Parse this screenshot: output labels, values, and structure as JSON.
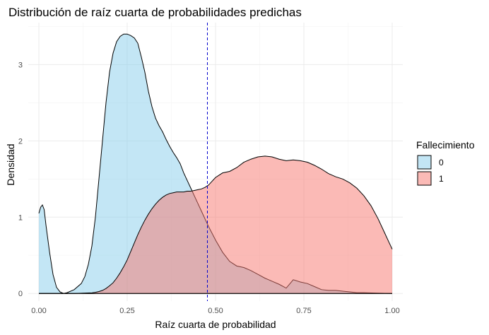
{
  "chart_data": {
    "type": "area",
    "title": "Distribución de raíz cuarta de probabilidades predichas",
    "xlabel": "Raíz cuarta de probabilidad",
    "ylabel": "Densidad",
    "xlim": [
      -0.03,
      1.03
    ],
    "ylim": [
      -0.1,
      3.55
    ],
    "x_ticks": [
      0.0,
      0.25,
      0.5,
      0.75,
      1.0
    ],
    "x_tick_labels": [
      "0.00",
      "0.25",
      "0.50",
      "0.75",
      "1.00"
    ],
    "y_ticks": [
      0,
      1,
      2,
      3
    ],
    "y_tick_labels": [
      "0",
      "1",
      "2",
      "3"
    ],
    "grid": true,
    "vline": {
      "x": 0.477,
      "color": "#0000cd",
      "style": "dashed"
    },
    "legend": {
      "title": "Fallecimiento",
      "position": "right"
    },
    "series": [
      {
        "name": "0",
        "fill": "#87ceeb",
        "opacity": 0.5,
        "points": [
          [
            0.0,
            1.05
          ],
          [
            0.005,
            1.13
          ],
          [
            0.01,
            1.16
          ],
          [
            0.015,
            1.1
          ],
          [
            0.02,
            0.9
          ],
          [
            0.03,
            0.55
          ],
          [
            0.04,
            0.25
          ],
          [
            0.05,
            0.08
          ],
          [
            0.06,
            0.02
          ],
          [
            0.07,
            0.0
          ],
          [
            0.08,
            0.01
          ],
          [
            0.1,
            0.05
          ],
          [
            0.12,
            0.13
          ],
          [
            0.13,
            0.22
          ],
          [
            0.14,
            0.38
          ],
          [
            0.15,
            0.62
          ],
          [
            0.16,
            1.0
          ],
          [
            0.17,
            1.5
          ],
          [
            0.18,
            2.0
          ],
          [
            0.19,
            2.5
          ],
          [
            0.2,
            2.9
          ],
          [
            0.21,
            3.15
          ],
          [
            0.22,
            3.3
          ],
          [
            0.23,
            3.37
          ],
          [
            0.24,
            3.4
          ],
          [
            0.25,
            3.4
          ],
          [
            0.26,
            3.38
          ],
          [
            0.27,
            3.35
          ],
          [
            0.28,
            3.28
          ],
          [
            0.29,
            3.1
          ],
          [
            0.3,
            2.9
          ],
          [
            0.31,
            2.65
          ],
          [
            0.32,
            2.45
          ],
          [
            0.33,
            2.3
          ],
          [
            0.34,
            2.2
          ],
          [
            0.35,
            2.12
          ],
          [
            0.36,
            2.02
          ],
          [
            0.37,
            1.93
          ],
          [
            0.38,
            1.85
          ],
          [
            0.39,
            1.78
          ],
          [
            0.4,
            1.7
          ],
          [
            0.41,
            1.58
          ],
          [
            0.42,
            1.48
          ],
          [
            0.43,
            1.38
          ],
          [
            0.44,
            1.28
          ],
          [
            0.45,
            1.18
          ],
          [
            0.46,
            1.08
          ],
          [
            0.47,
            0.98
          ],
          [
            0.48,
            0.88
          ],
          [
            0.5,
            0.7
          ],
          [
            0.52,
            0.54
          ],
          [
            0.54,
            0.42
          ],
          [
            0.56,
            0.36
          ],
          [
            0.58,
            0.34
          ],
          [
            0.6,
            0.3
          ],
          [
            0.62,
            0.25
          ],
          [
            0.64,
            0.2
          ],
          [
            0.66,
            0.16
          ],
          [
            0.68,
            0.12
          ],
          [
            0.7,
            0.07
          ],
          [
            0.72,
            0.18
          ],
          [
            0.74,
            0.15
          ],
          [
            0.76,
            0.13
          ],
          [
            0.78,
            0.09
          ],
          [
            0.8,
            0.05
          ],
          [
            0.82,
            0.04
          ],
          [
            0.84,
            0.04
          ],
          [
            0.86,
            0.03
          ],
          [
            0.88,
            0.02
          ],
          [
            0.9,
            0.01
          ],
          [
            0.92,
            0.01
          ],
          [
            0.95,
            0.005
          ],
          [
            1.0,
            0.0
          ]
        ]
      },
      {
        "name": "1",
        "fill": "#f8766d",
        "opacity": 0.5,
        "points": [
          [
            0.0,
            0.0
          ],
          [
            0.1,
            0.0
          ],
          [
            0.12,
            0.003
          ],
          [
            0.15,
            0.008
          ],
          [
            0.16,
            0.015
          ],
          [
            0.17,
            0.025
          ],
          [
            0.18,
            0.04
          ],
          [
            0.19,
            0.065
          ],
          [
            0.2,
            0.1
          ],
          [
            0.21,
            0.14
          ],
          [
            0.22,
            0.2
          ],
          [
            0.23,
            0.27
          ],
          [
            0.24,
            0.35
          ],
          [
            0.25,
            0.44
          ],
          [
            0.26,
            0.55
          ],
          [
            0.27,
            0.66
          ],
          [
            0.28,
            0.77
          ],
          [
            0.29,
            0.87
          ],
          [
            0.3,
            0.96
          ],
          [
            0.31,
            1.04
          ],
          [
            0.32,
            1.11
          ],
          [
            0.33,
            1.17
          ],
          [
            0.34,
            1.22
          ],
          [
            0.35,
            1.26
          ],
          [
            0.36,
            1.29
          ],
          [
            0.37,
            1.31
          ],
          [
            0.38,
            1.32
          ],
          [
            0.39,
            1.33
          ],
          [
            0.4,
            1.33
          ],
          [
            0.41,
            1.33
          ],
          [
            0.42,
            1.34
          ],
          [
            0.43,
            1.34
          ],
          [
            0.44,
            1.35
          ],
          [
            0.45,
            1.36
          ],
          [
            0.46,
            1.37
          ],
          [
            0.47,
            1.39
          ],
          [
            0.48,
            1.42
          ],
          [
            0.49,
            1.47
          ],
          [
            0.5,
            1.52
          ],
          [
            0.52,
            1.58
          ],
          [
            0.54,
            1.6
          ],
          [
            0.56,
            1.65
          ],
          [
            0.58,
            1.72
          ],
          [
            0.6,
            1.76
          ],
          [
            0.62,
            1.79
          ],
          [
            0.64,
            1.8
          ],
          [
            0.66,
            1.79
          ],
          [
            0.68,
            1.76
          ],
          [
            0.7,
            1.74
          ],
          [
            0.72,
            1.75
          ],
          [
            0.74,
            1.74
          ],
          [
            0.76,
            1.72
          ],
          [
            0.78,
            1.68
          ],
          [
            0.8,
            1.63
          ],
          [
            0.82,
            1.57
          ],
          [
            0.84,
            1.53
          ],
          [
            0.86,
            1.5
          ],
          [
            0.88,
            1.45
          ],
          [
            0.9,
            1.38
          ],
          [
            0.92,
            1.28
          ],
          [
            0.94,
            1.15
          ],
          [
            0.96,
            0.98
          ],
          [
            0.98,
            0.78
          ],
          [
            0.99,
            0.68
          ],
          [
            1.0,
            0.58
          ]
        ]
      }
    ]
  },
  "colors": {
    "line": "#000000",
    "vline": "#0000cd"
  }
}
